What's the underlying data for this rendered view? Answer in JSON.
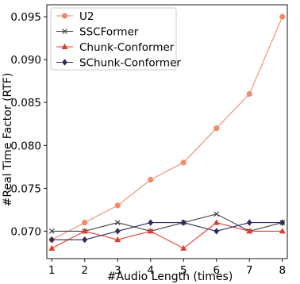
{
  "chart_data": {
    "type": "line",
    "xlabel": "#Audio Length (times)",
    "ylabel": "#Real Time Factor (RTF)",
    "x": [
      1,
      2,
      3,
      4,
      5,
      6,
      7,
      8
    ],
    "xlim": [
      0.85,
      8.15
    ],
    "ylim": [
      0.0668,
      0.0964
    ],
    "yticks": [
      "0.070",
      "0.075",
      "0.080",
      "0.085",
      "0.090",
      "0.095"
    ],
    "ytick_values": [
      0.07,
      0.075,
      0.08,
      0.085,
      0.09,
      0.095
    ],
    "legend_position": "top-left",
    "series": [
      {
        "name": "U2",
        "color": "#f08a6c",
        "marker": "circle",
        "values": [
          0.069,
          0.071,
          0.073,
          0.076,
          0.078,
          0.082,
          0.086,
          0.095
        ]
      },
      {
        "name": "SSCFormer",
        "color": "#444444",
        "marker": "x",
        "values": [
          0.07,
          0.07,
          0.071,
          0.07,
          0.071,
          0.072,
          0.07,
          0.071
        ]
      },
      {
        "name": "Chunk-Conformer",
        "color": "#e03b2f",
        "marker": "triangle",
        "values": [
          0.068,
          0.07,
          0.069,
          0.07,
          0.068,
          0.071,
          0.07,
          0.07
        ]
      },
      {
        "name": "SChunk-Conformer",
        "color": "#2c2d5e",
        "marker": "diamond",
        "values": [
          0.069,
          0.069,
          0.07,
          0.071,
          0.071,
          0.07,
          0.071,
          0.071
        ]
      }
    ]
  }
}
